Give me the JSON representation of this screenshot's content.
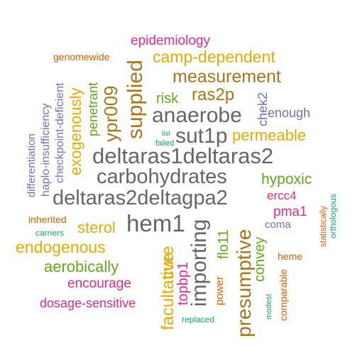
{
  "palette": {
    "green": "#1b9e77",
    "orange": "#d95f02",
    "purple": "#7570b3",
    "magenta": "#e7298a",
    "lime": "#66a61e",
    "gold": "#e6ab02",
    "brown": "#a6761d",
    "gray": "#666666"
  },
  "words": [
    {
      "text": "deltaras1deltaras2",
      "color": "#666666"
    },
    {
      "text": "carbohydrates",
      "color": "#666666"
    },
    {
      "text": "deltaras2deltagpa2",
      "color": "#666666"
    },
    {
      "text": "anaerobe",
      "color": "#666666"
    },
    {
      "text": "sut1p",
      "color": "#666666"
    },
    {
      "text": "hem1",
      "color": "#666666"
    },
    {
      "text": "importing",
      "color": "#666666"
    },
    {
      "text": "supplied",
      "color": "#a6761d"
    },
    {
      "text": "ypr009",
      "color": "#a6761d"
    },
    {
      "text": "measurement",
      "color": "#a6761d"
    },
    {
      "text": "ras2p",
      "color": "#a6761d"
    },
    {
      "text": "presumptive",
      "color": "#a6761d"
    },
    {
      "text": "camp-dependent",
      "color": "#e6ab02"
    },
    {
      "text": "permeable",
      "color": "#e6ab02"
    },
    {
      "text": "exogenously",
      "color": "#e6ab02"
    },
    {
      "text": "endogenous",
      "color": "#e6ab02"
    },
    {
      "text": "sterol",
      "color": "#e6ab02"
    },
    {
      "text": "cure",
      "color": "#e6ab02"
    },
    {
      "text": "facultative",
      "color": "#e6ab02"
    },
    {
      "text": "epidemiology",
      "color": "#e7298a"
    },
    {
      "text": "encourage",
      "color": "#e7298a"
    },
    {
      "text": "dosage-sensitive",
      "color": "#e7298a"
    },
    {
      "text": "topbp1",
      "color": "#e7298a"
    },
    {
      "text": "pma1",
      "color": "#e7298a"
    },
    {
      "text": "ercc4",
      "color": "#e7298a"
    },
    {
      "text": "risk",
      "color": "#66a61e"
    },
    {
      "text": "penetrant",
      "color": "#66a61e"
    },
    {
      "text": "hypoxic",
      "color": "#66a61e"
    },
    {
      "text": "aerobically",
      "color": "#66a61e"
    },
    {
      "text": "flo11",
      "color": "#66a61e"
    },
    {
      "text": "convey",
      "color": "#66a61e"
    },
    {
      "text": "enough",
      "color": "#7570b3"
    },
    {
      "text": "chek2",
      "color": "#7570b3"
    },
    {
      "text": "checkpoint-deficient",
      "color": "#7570b3"
    },
    {
      "text": "haplo-insufficiency",
      "color": "#7570b3"
    },
    {
      "text": "differentiation",
      "color": "#7570b3"
    },
    {
      "text": "coma",
      "color": "#7570b3"
    },
    {
      "text": "genomewide",
      "color": "#d95f02"
    },
    {
      "text": "inherited",
      "color": "#d95f02"
    },
    {
      "text": "heme",
      "color": "#d95f02"
    },
    {
      "text": "power",
      "color": "#d95f02"
    },
    {
      "text": "comparable",
      "color": "#d95f02"
    },
    {
      "text": "statistically",
      "color": "#d95f02"
    },
    {
      "text": "failed",
      "color": "#1b9e77"
    },
    {
      "text": "list",
      "color": "#1b9e77"
    },
    {
      "text": "carriers",
      "color": "#1b9e77"
    },
    {
      "text": "replaced",
      "color": "#1b9e77"
    },
    {
      "text": "modest",
      "color": "#1b9e77"
    },
    {
      "text": "orthologous",
      "color": "#1b9e77"
    }
  ]
}
